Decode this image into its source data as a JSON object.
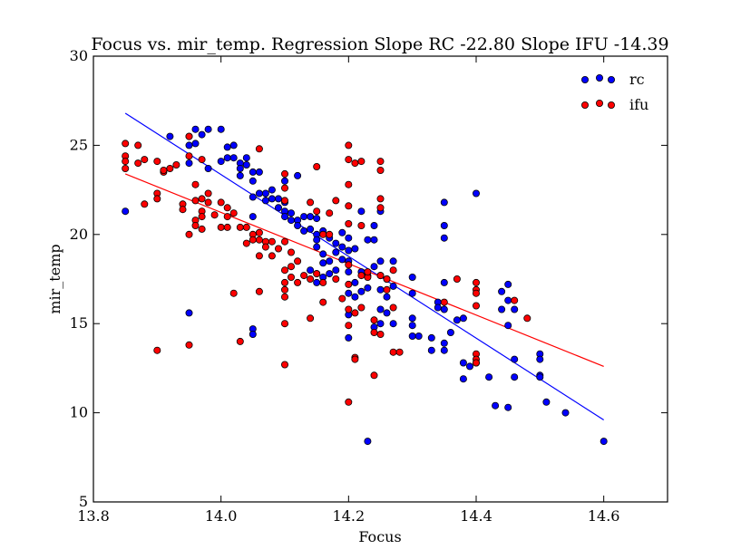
{
  "chart_data": {
    "type": "scatter",
    "title": "Focus vs. mir_temp. Regression Slope RC -22.80 Slope IFU -14.39",
    "xlabel": "Focus",
    "ylabel": "mir_temp",
    "xlim": [
      13.8,
      14.7
    ],
    "ylim": [
      5,
      30
    ],
    "xticks": [
      "13.8",
      "14.0",
      "14.2",
      "14.4",
      "14.6"
    ],
    "yticks": [
      "5",
      "10",
      "15",
      "20",
      "25",
      "30"
    ],
    "grid": false,
    "legend_position": "top-right",
    "series": [
      {
        "name": "rc",
        "color": "#0000ff",
        "marker": "circle",
        "points": [
          [
            13.85,
            21.3
          ],
          [
            13.92,
            25.5
          ],
          [
            13.95,
            25.5
          ],
          [
            13.95,
            25.0
          ],
          [
            13.95,
            24.0
          ],
          [
            13.95,
            15.6
          ],
          [
            13.96,
            25.9
          ],
          [
            13.96,
            25.1
          ],
          [
            13.97,
            25.6
          ],
          [
            13.98,
            25.9
          ],
          [
            13.98,
            23.7
          ],
          [
            14.0,
            25.9
          ],
          [
            14.0,
            24.1
          ],
          [
            14.01,
            24.9
          ],
          [
            14.01,
            24.3
          ],
          [
            14.02,
            25.0
          ],
          [
            14.02,
            24.3
          ],
          [
            14.03,
            24.0
          ],
          [
            14.03,
            23.7
          ],
          [
            14.03,
            23.3
          ],
          [
            14.04,
            24.3
          ],
          [
            14.04,
            23.9
          ],
          [
            14.05,
            23.5
          ],
          [
            14.05,
            23.0
          ],
          [
            14.05,
            22.1
          ],
          [
            14.05,
            21.0
          ],
          [
            14.05,
            14.7
          ],
          [
            14.05,
            14.4
          ],
          [
            14.06,
            23.5
          ],
          [
            14.06,
            22.3
          ],
          [
            14.07,
            22.3
          ],
          [
            14.07,
            21.9
          ],
          [
            14.08,
            22.5
          ],
          [
            14.08,
            22.0
          ],
          [
            14.09,
            22.0
          ],
          [
            14.09,
            21.5
          ],
          [
            14.1,
            21.8
          ],
          [
            14.1,
            21.3
          ],
          [
            14.1,
            23.0
          ],
          [
            14.1,
            21.0
          ],
          [
            14.11,
            21.2
          ],
          [
            14.11,
            20.8
          ],
          [
            14.12,
            23.3
          ],
          [
            14.12,
            20.8
          ],
          [
            14.12,
            20.5
          ],
          [
            14.13,
            21.0
          ],
          [
            14.13,
            20.2
          ],
          [
            14.14,
            20.3
          ],
          [
            14.14,
            21.0
          ],
          [
            14.14,
            18.0
          ],
          [
            14.15,
            20.9
          ],
          [
            14.15,
            20.0
          ],
          [
            14.15,
            19.7
          ],
          [
            14.15,
            19.3
          ],
          [
            14.15,
            17.8
          ],
          [
            14.15,
            17.3
          ],
          [
            14.16,
            20.2
          ],
          [
            14.16,
            18.9
          ],
          [
            14.16,
            18.4
          ],
          [
            14.16,
            17.6
          ],
          [
            14.17,
            19.8
          ],
          [
            14.17,
            18.5
          ],
          [
            14.17,
            17.8
          ],
          [
            14.18,
            19.5
          ],
          [
            14.18,
            19.0
          ],
          [
            14.18,
            18.0
          ],
          [
            14.19,
            20.1
          ],
          [
            14.19,
            19.3
          ],
          [
            14.19,
            18.6
          ],
          [
            14.2,
            19.8
          ],
          [
            14.2,
            19.1
          ],
          [
            14.2,
            18.5
          ],
          [
            14.2,
            17.9
          ],
          [
            14.2,
            16.7
          ],
          [
            14.2,
            15.5
          ],
          [
            14.2,
            14.2
          ],
          [
            14.21,
            19.2
          ],
          [
            14.21,
            17.3
          ],
          [
            14.21,
            16.5
          ],
          [
            14.22,
            21.3
          ],
          [
            14.22,
            17.9
          ],
          [
            14.22,
            16.8
          ],
          [
            14.23,
            19.7
          ],
          [
            14.23,
            17.7
          ],
          [
            14.23,
            17.0
          ],
          [
            14.23,
            8.4
          ],
          [
            14.24,
            20.5
          ],
          [
            14.24,
            19.7
          ],
          [
            14.24,
            18.2
          ],
          [
            14.24,
            14.8
          ],
          [
            14.25,
            21.3
          ],
          [
            14.25,
            18.5
          ],
          [
            14.25,
            17.7
          ],
          [
            14.25,
            16.9
          ],
          [
            14.25,
            15.8
          ],
          [
            14.25,
            15.0
          ],
          [
            14.26,
            17.5
          ],
          [
            14.26,
            16.5
          ],
          [
            14.26,
            15.6
          ],
          [
            14.27,
            18.5
          ],
          [
            14.27,
            17.1
          ],
          [
            14.27,
            15.0
          ],
          [
            14.3,
            17.6
          ],
          [
            14.3,
            16.7
          ],
          [
            14.3,
            15.3
          ],
          [
            14.3,
            14.9
          ],
          [
            14.3,
            14.3
          ],
          [
            14.31,
            14.3
          ],
          [
            14.33,
            13.5
          ],
          [
            14.33,
            14.2
          ],
          [
            14.34,
            16.2
          ],
          [
            14.34,
            15.9
          ],
          [
            14.35,
            21.8
          ],
          [
            14.35,
            20.5
          ],
          [
            14.35,
            19.8
          ],
          [
            14.35,
            17.3
          ],
          [
            14.35,
            15.8
          ],
          [
            14.35,
            13.9
          ],
          [
            14.35,
            13.5
          ],
          [
            14.36,
            14.5
          ],
          [
            14.37,
            15.2
          ],
          [
            14.38,
            15.3
          ],
          [
            14.38,
            12.8
          ],
          [
            14.38,
            11.9
          ],
          [
            14.39,
            12.6
          ],
          [
            14.4,
            22.3
          ],
          [
            14.4,
            12.8
          ],
          [
            14.42,
            12.0
          ],
          [
            14.43,
            10.4
          ],
          [
            14.44,
            16.8
          ],
          [
            14.44,
            15.8
          ],
          [
            14.45,
            17.2
          ],
          [
            14.45,
            16.3
          ],
          [
            14.45,
            14.9
          ],
          [
            14.45,
            10.3
          ],
          [
            14.46,
            15.8
          ],
          [
            14.46,
            13.0
          ],
          [
            14.46,
            12.0
          ],
          [
            14.5,
            13.3
          ],
          [
            14.5,
            13.0
          ],
          [
            14.5,
            12.1
          ],
          [
            14.5,
            12.0
          ],
          [
            14.51,
            10.6
          ],
          [
            14.54,
            10.0
          ],
          [
            14.6,
            8.4
          ]
        ],
        "regression": {
          "x": [
            13.85,
            14.6
          ],
          "y": [
            26.8,
            9.6
          ]
        }
      },
      {
        "name": "ifu",
        "color": "#ff0000",
        "marker": "circle",
        "points": [
          [
            13.85,
            25.1
          ],
          [
            13.85,
            24.4
          ],
          [
            13.85,
            24.1
          ],
          [
            13.85,
            23.7
          ],
          [
            13.87,
            25.0
          ],
          [
            13.87,
            24.0
          ],
          [
            13.88,
            24.2
          ],
          [
            13.88,
            21.7
          ],
          [
            13.9,
            24.1
          ],
          [
            13.9,
            22.3
          ],
          [
            13.9,
            22.0
          ],
          [
            13.9,
            13.5
          ],
          [
            13.91,
            23.5
          ],
          [
            13.91,
            23.6
          ],
          [
            13.92,
            23.7
          ],
          [
            13.93,
            23.9
          ],
          [
            13.94,
            21.7
          ],
          [
            13.94,
            21.4
          ],
          [
            13.95,
            25.5
          ],
          [
            13.95,
            24.4
          ],
          [
            13.95,
            20.0
          ],
          [
            13.95,
            13.8
          ],
          [
            13.96,
            22.8
          ],
          [
            13.96,
            21.9
          ],
          [
            13.96,
            20.8
          ],
          [
            13.96,
            20.5
          ],
          [
            13.97,
            24.2
          ],
          [
            13.97,
            22.0
          ],
          [
            13.97,
            21.3
          ],
          [
            13.97,
            21.0
          ],
          [
            13.97,
            20.3
          ],
          [
            13.98,
            22.3
          ],
          [
            13.98,
            21.8
          ],
          [
            13.99,
            21.1
          ],
          [
            14.0,
            21.8
          ],
          [
            14.0,
            20.4
          ],
          [
            14.01,
            21.5
          ],
          [
            14.01,
            21.0
          ],
          [
            14.01,
            20.4
          ],
          [
            14.02,
            21.2
          ],
          [
            14.02,
            16.7
          ],
          [
            14.03,
            20.4
          ],
          [
            14.03,
            14.0
          ],
          [
            14.04,
            20.4
          ],
          [
            14.04,
            19.5
          ],
          [
            14.05,
            20.0
          ],
          [
            14.05,
            19.7
          ],
          [
            14.06,
            24.8
          ],
          [
            14.06,
            20.1
          ],
          [
            14.06,
            19.7
          ],
          [
            14.06,
            18.8
          ],
          [
            14.06,
            16.8
          ],
          [
            14.07,
            19.6
          ],
          [
            14.07,
            19.3
          ],
          [
            14.08,
            19.6
          ],
          [
            14.08,
            18.8
          ],
          [
            14.09,
            19.2
          ],
          [
            14.1,
            23.4
          ],
          [
            14.1,
            22.6
          ],
          [
            14.1,
            21.9
          ],
          [
            14.1,
            19.6
          ],
          [
            14.1,
            18.0
          ],
          [
            14.1,
            17.3
          ],
          [
            14.1,
            16.9
          ],
          [
            14.1,
            16.5
          ],
          [
            14.1,
            15.0
          ],
          [
            14.1,
            12.7
          ],
          [
            14.11,
            19.0
          ],
          [
            14.11,
            18.2
          ],
          [
            14.11,
            17.6
          ],
          [
            14.12,
            18.5
          ],
          [
            14.12,
            17.3
          ],
          [
            14.13,
            17.7
          ],
          [
            14.14,
            21.8
          ],
          [
            14.14,
            17.5
          ],
          [
            14.14,
            15.3
          ],
          [
            14.15,
            23.8
          ],
          [
            14.15,
            21.3
          ],
          [
            14.15,
            17.8
          ],
          [
            14.16,
            20.0
          ],
          [
            14.16,
            17.3
          ],
          [
            14.16,
            16.2
          ],
          [
            14.17,
            21.2
          ],
          [
            14.17,
            20.0
          ],
          [
            14.18,
            21.9
          ],
          [
            14.18,
            17.5
          ],
          [
            14.19,
            16.4
          ],
          [
            14.2,
            25.0
          ],
          [
            14.2,
            24.2
          ],
          [
            14.2,
            22.8
          ],
          [
            14.2,
            21.6
          ],
          [
            14.2,
            20.6
          ],
          [
            14.2,
            18.3
          ],
          [
            14.2,
            17.2
          ],
          [
            14.2,
            15.8
          ],
          [
            14.2,
            14.9
          ],
          [
            14.2,
            10.6
          ],
          [
            14.21,
            24.0
          ],
          [
            14.21,
            15.6
          ],
          [
            14.21,
            13.1
          ],
          [
            14.21,
            13.0
          ],
          [
            14.22,
            24.1
          ],
          [
            14.22,
            20.5
          ],
          [
            14.22,
            17.7
          ],
          [
            14.22,
            15.9
          ],
          [
            14.23,
            17.6
          ],
          [
            14.23,
            17.9
          ],
          [
            14.24,
            15.2
          ],
          [
            14.24,
            14.5
          ],
          [
            14.24,
            12.1
          ],
          [
            14.25,
            24.1
          ],
          [
            14.25,
            23.6
          ],
          [
            14.25,
            22.0
          ],
          [
            14.25,
            21.5
          ],
          [
            14.25,
            17.7
          ],
          [
            14.25,
            14.4
          ],
          [
            14.26,
            17.5
          ],
          [
            14.26,
            16.9
          ],
          [
            14.27,
            18.0
          ],
          [
            14.27,
            15.9
          ],
          [
            14.27,
            13.4
          ],
          [
            14.28,
            13.4
          ],
          [
            14.35,
            16.2
          ],
          [
            14.37,
            17.5
          ],
          [
            14.4,
            17.3
          ],
          [
            14.4,
            16.9
          ],
          [
            14.4,
            16.7
          ],
          [
            14.4,
            16.0
          ],
          [
            14.4,
            13.3
          ],
          [
            14.4,
            13.0
          ],
          [
            14.4,
            12.8
          ],
          [
            14.46,
            16.3
          ],
          [
            14.48,
            15.3
          ]
        ],
        "regression": {
          "x": [
            13.85,
            14.6
          ],
          "y": [
            23.4,
            12.6
          ]
        }
      }
    ]
  }
}
